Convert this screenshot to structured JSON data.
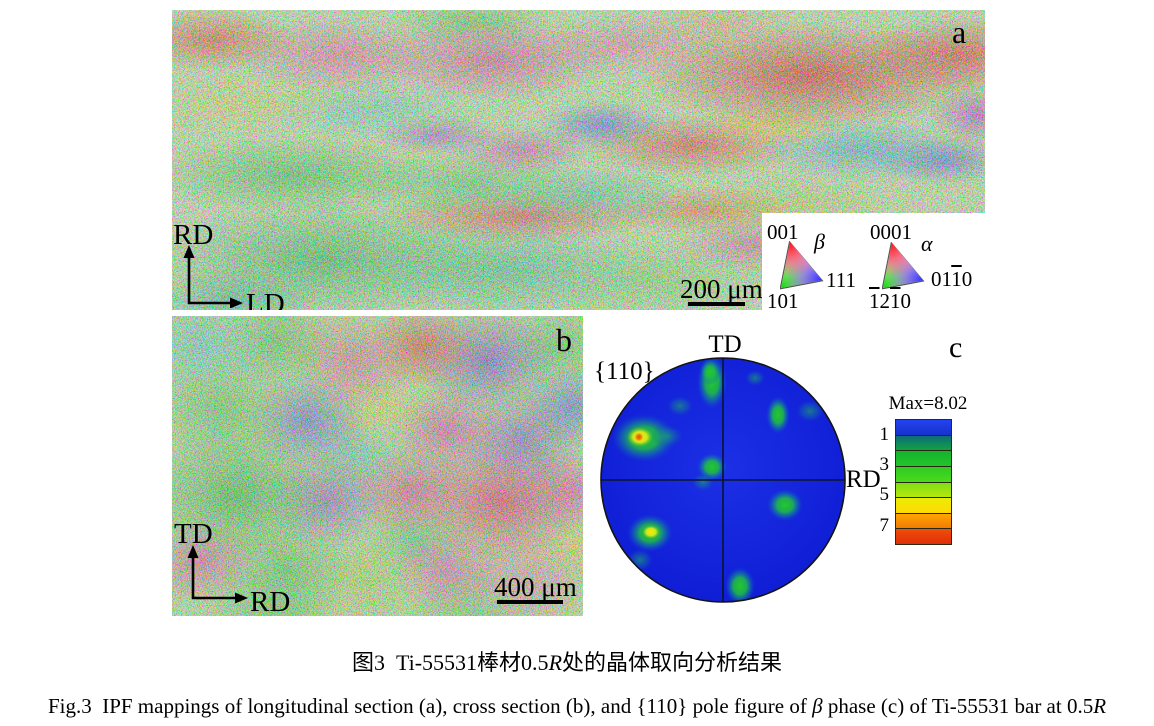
{
  "panel_a": {
    "label": "a",
    "axis_vertical": "RD",
    "axis_horizontal": "LD",
    "scale_bar": "200 μm"
  },
  "panel_b": {
    "label": "b",
    "axis_vertical": "TD",
    "axis_horizontal": "RD",
    "scale_bar": "400 μm"
  },
  "ipf_legend": {
    "beta": {
      "phase": "β",
      "corner_top": "001",
      "corner_right": "111",
      "corner_bottom_left": "101"
    },
    "alpha": {
      "phase": "α",
      "corner_top": "0001",
      "corner_right": {
        "p1": "01",
        "ov": "1",
        "p2": "0"
      },
      "corner_bottom_left": {
        "ov1": "1",
        "p1": "2",
        "ov2": "1",
        "p2": "0"
      }
    }
  },
  "panel_c": {
    "label": "c",
    "plane_label": "{110}",
    "axis_top": "TD",
    "axis_right": "RD",
    "pole_figure_base_color": "#101fd6",
    "hotspot_max_color": "#e24a08",
    "colorbar": {
      "max_label": "Max=8.02",
      "ticks": [
        "1",
        "3",
        "5",
        "7"
      ],
      "segment_colors": [
        [
          "#2343ef",
          "#1731cb"
        ],
        [
          "#0d6c76",
          "#12a244"
        ],
        [
          "#15b22c",
          "#23c42c"
        ],
        [
          "#2fcb23",
          "#4cd91d"
        ],
        [
          "#80de15",
          "#b5e70d"
        ],
        [
          "#eaed06",
          "#ffd903"
        ],
        [
          "#ffa502",
          "#f37b02"
        ],
        [
          "#ee4e0a",
          "#e22e07"
        ]
      ]
    }
  },
  "caption": {
    "chinese_part1": "图3  Ti-55531棒材0.5",
    "chinese_italic": "R",
    "chinese_part2": "处的晶体取向分析结果",
    "english_part1": "Fig.3  IPF mappings of longitudinal section (a), cross section (b), and {110} pole figure of ",
    "english_italic1": "β",
    "english_part2": " phase (c) of Ti-55531 bar at 0.5",
    "english_italic2": "R"
  }
}
